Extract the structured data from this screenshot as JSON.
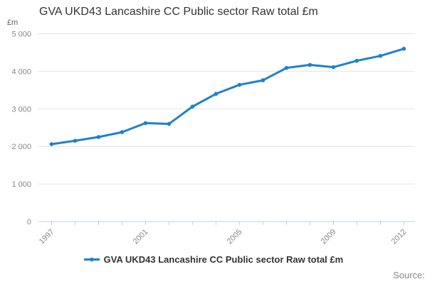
{
  "title": "GVA UKD43 Lancashire CC Public sector Raw total £m",
  "y_axis_title": "£m",
  "legend": {
    "label": "GVA UKD43 Lancashire CC Public sector Raw total £m"
  },
  "source_label": "Source:",
  "colors": {
    "line": "#1e82c8",
    "axis": "#c0d0e0",
    "grid": "#e4e4e4",
    "tick_label": "#888888",
    "title_text": "#333333"
  },
  "chart_data": {
    "type": "line",
    "title": "GVA UKD43 Lancashire CC Public sector Raw total £m",
    "xlabel": "",
    "ylabel": "£m",
    "x": [
      1997,
      1998,
      1999,
      2000,
      2001,
      2002,
      2003,
      2004,
      2005,
      2006,
      2007,
      2008,
      2009,
      2010,
      2011,
      2012
    ],
    "series": [
      {
        "name": "GVA UKD43 Lancashire CC Public sector Raw total £m",
        "values": [
          2060,
          2150,
          2250,
          2380,
          2620,
          2600,
          3060,
          3400,
          3640,
          3760,
          4090,
          4170,
          4110,
          4280,
          4410,
          4600
        ]
      }
    ],
    "xtick_years": [
      1997,
      2001,
      2005,
      2009,
      2012
    ],
    "xtick_labels": [
      "1997",
      "2001",
      "2005",
      "2009",
      "2012"
    ],
    "yticks": [
      0,
      1000,
      2000,
      3000,
      4000,
      5000
    ],
    "ytick_labels": [
      "0",
      "1 000",
      "2 000",
      "3 000",
      "4 000",
      "5 000"
    ],
    "ylim": [
      0,
      5000
    ],
    "grid": "horizontal",
    "legend_position": "bottom"
  }
}
